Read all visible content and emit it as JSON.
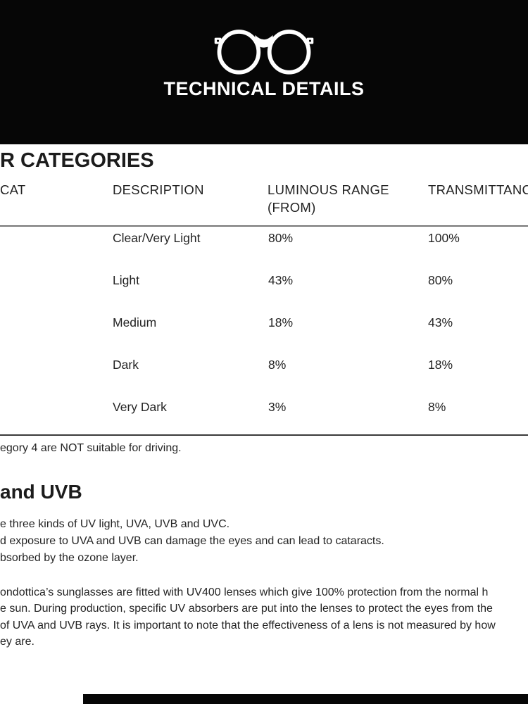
{
  "header": {
    "background": "#060606",
    "title": "TECHNICAL DETAILS",
    "title_color": "#ffffff",
    "icon": "glasses-icon"
  },
  "filter_section": {
    "heading": "R CATEGORIES",
    "table": {
      "columns": {
        "cat": "CAT",
        "description": "DESCRIPTION",
        "luminous_line1": "LUMINOUS RANGE",
        "luminous_line2": "(FROM)",
        "transmittance": "TRANSMITTANCE"
      },
      "rows": [
        {
          "description": "Clear/Very Light",
          "luminous_from": "80%",
          "transmittance": "100%"
        },
        {
          "description": "Light",
          "luminous_from": "43%",
          "transmittance": "80%"
        },
        {
          "description": "Medium",
          "luminous_from": "18%",
          "transmittance": "43%"
        },
        {
          "description": "Dark",
          "luminous_from": "8%",
          "transmittance": "18%"
        },
        {
          "description": "Very Dark",
          "luminous_from": "3%",
          "transmittance": "8%"
        }
      ]
    },
    "note": "egory 4 are NOT suitable for driving."
  },
  "uv_section": {
    "heading": "and UVB",
    "lines": [
      "e three kinds of UV light, UVA, UVB and UVC.",
      "d exposure to UVA and UVB can damage the eyes and can lead to cataracts.",
      "bsorbed by the ozone layer."
    ],
    "paragraph_lines": [
      "ondottica’s sunglasses are fitted with UV400 lenses which give 100% protection from the normal h",
      "e sun. During production, specific UV absorbers are put into the lenses to protect the eyes from the",
      "of UVA and UVB rays. It is important to note that the effectiveness of a lens is not measured by how",
      "ey are."
    ]
  },
  "colors": {
    "banner": "#060606",
    "rule_top": "#767676",
    "rule_bottom": "#3a3a3a",
    "text": "#242424"
  }
}
